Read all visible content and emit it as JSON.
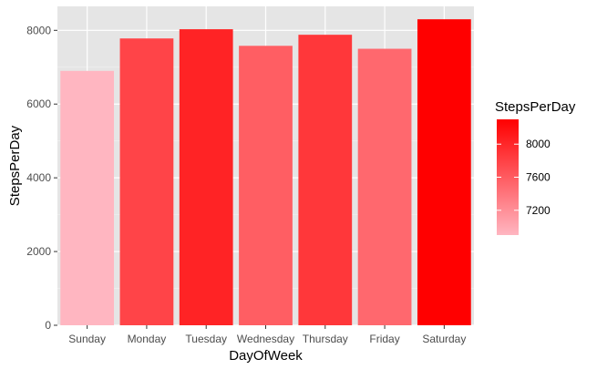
{
  "chart_data": {
    "type": "bar",
    "categories": [
      "Sunday",
      "Monday",
      "Tuesday",
      "Wednesday",
      "Thursday",
      "Friday",
      "Saturday"
    ],
    "values": [
      6900,
      7780,
      8030,
      7580,
      7880,
      7500,
      8300
    ],
    "xlabel": "DayOfWeek",
    "ylabel": "StepsPerDay",
    "ylim": [
      0,
      8650
    ],
    "yticks": [
      0,
      2000,
      4000,
      6000,
      8000
    ],
    "grid": true,
    "background_color": "#e5e5e5",
    "legend": {
      "title": "StepsPerDay",
      "placement": "right",
      "ticks": [
        7200,
        7600,
        8000
      ],
      "color_low": "#ffb6c1",
      "color_high": "#ff0000",
      "range": [
        6900,
        8300
      ]
    }
  }
}
